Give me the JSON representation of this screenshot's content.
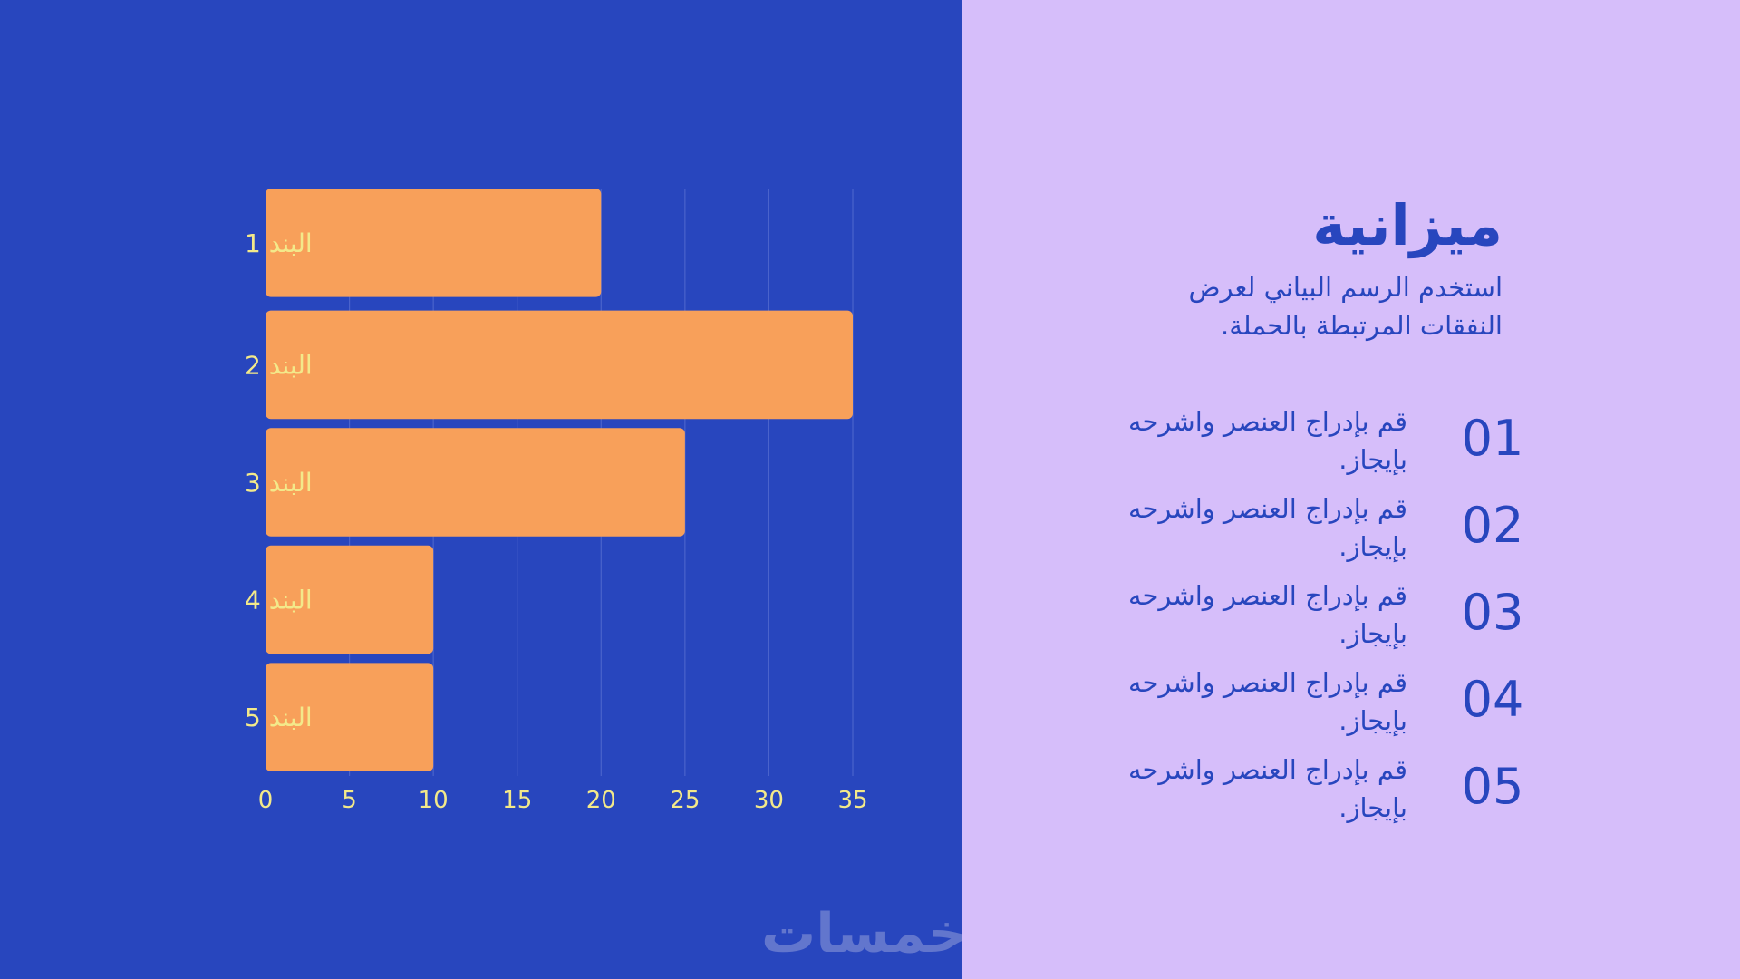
{
  "colors": {
    "left_background": "#2846be",
    "right_background": "#d6befa",
    "bar": "#f8a05a",
    "label": "#f3e98a",
    "text": "#2846be",
    "gridline": "#4a63cc"
  },
  "header": {
    "title": "ميزانية",
    "subtitle": "استخدم الرسم البياني لعرض النفقات المرتبطة بالحملة."
  },
  "items": [
    {
      "number": "01",
      "text": "قم بإدراج العنصر واشرحه بإيجاز."
    },
    {
      "number": "02",
      "text": "قم بإدراج العنصر واشرحه بإيجاز."
    },
    {
      "number": "03",
      "text": "قم بإدراج العنصر واشرحه بإيجاز."
    },
    {
      "number": "04",
      "text": "قم بإدراج العنصر واشرحه بإيجاز."
    },
    {
      "number": "05",
      "text": "قم بإدراج العنصر واشرحه بإيجاز."
    }
  ],
  "watermark": "خمسات",
  "chart_data": {
    "type": "bar",
    "orientation": "horizontal",
    "categories": [
      "البند 1",
      "البند 2",
      "البند 3",
      "البند 4",
      "البند 5"
    ],
    "values": [
      20,
      35,
      25,
      10,
      10
    ],
    "xlim": [
      0,
      35
    ],
    "xticks": [
      0,
      5,
      10,
      15,
      20,
      25,
      30,
      35
    ],
    "grid": true,
    "title": "",
    "xlabel": "",
    "ylabel": ""
  }
}
